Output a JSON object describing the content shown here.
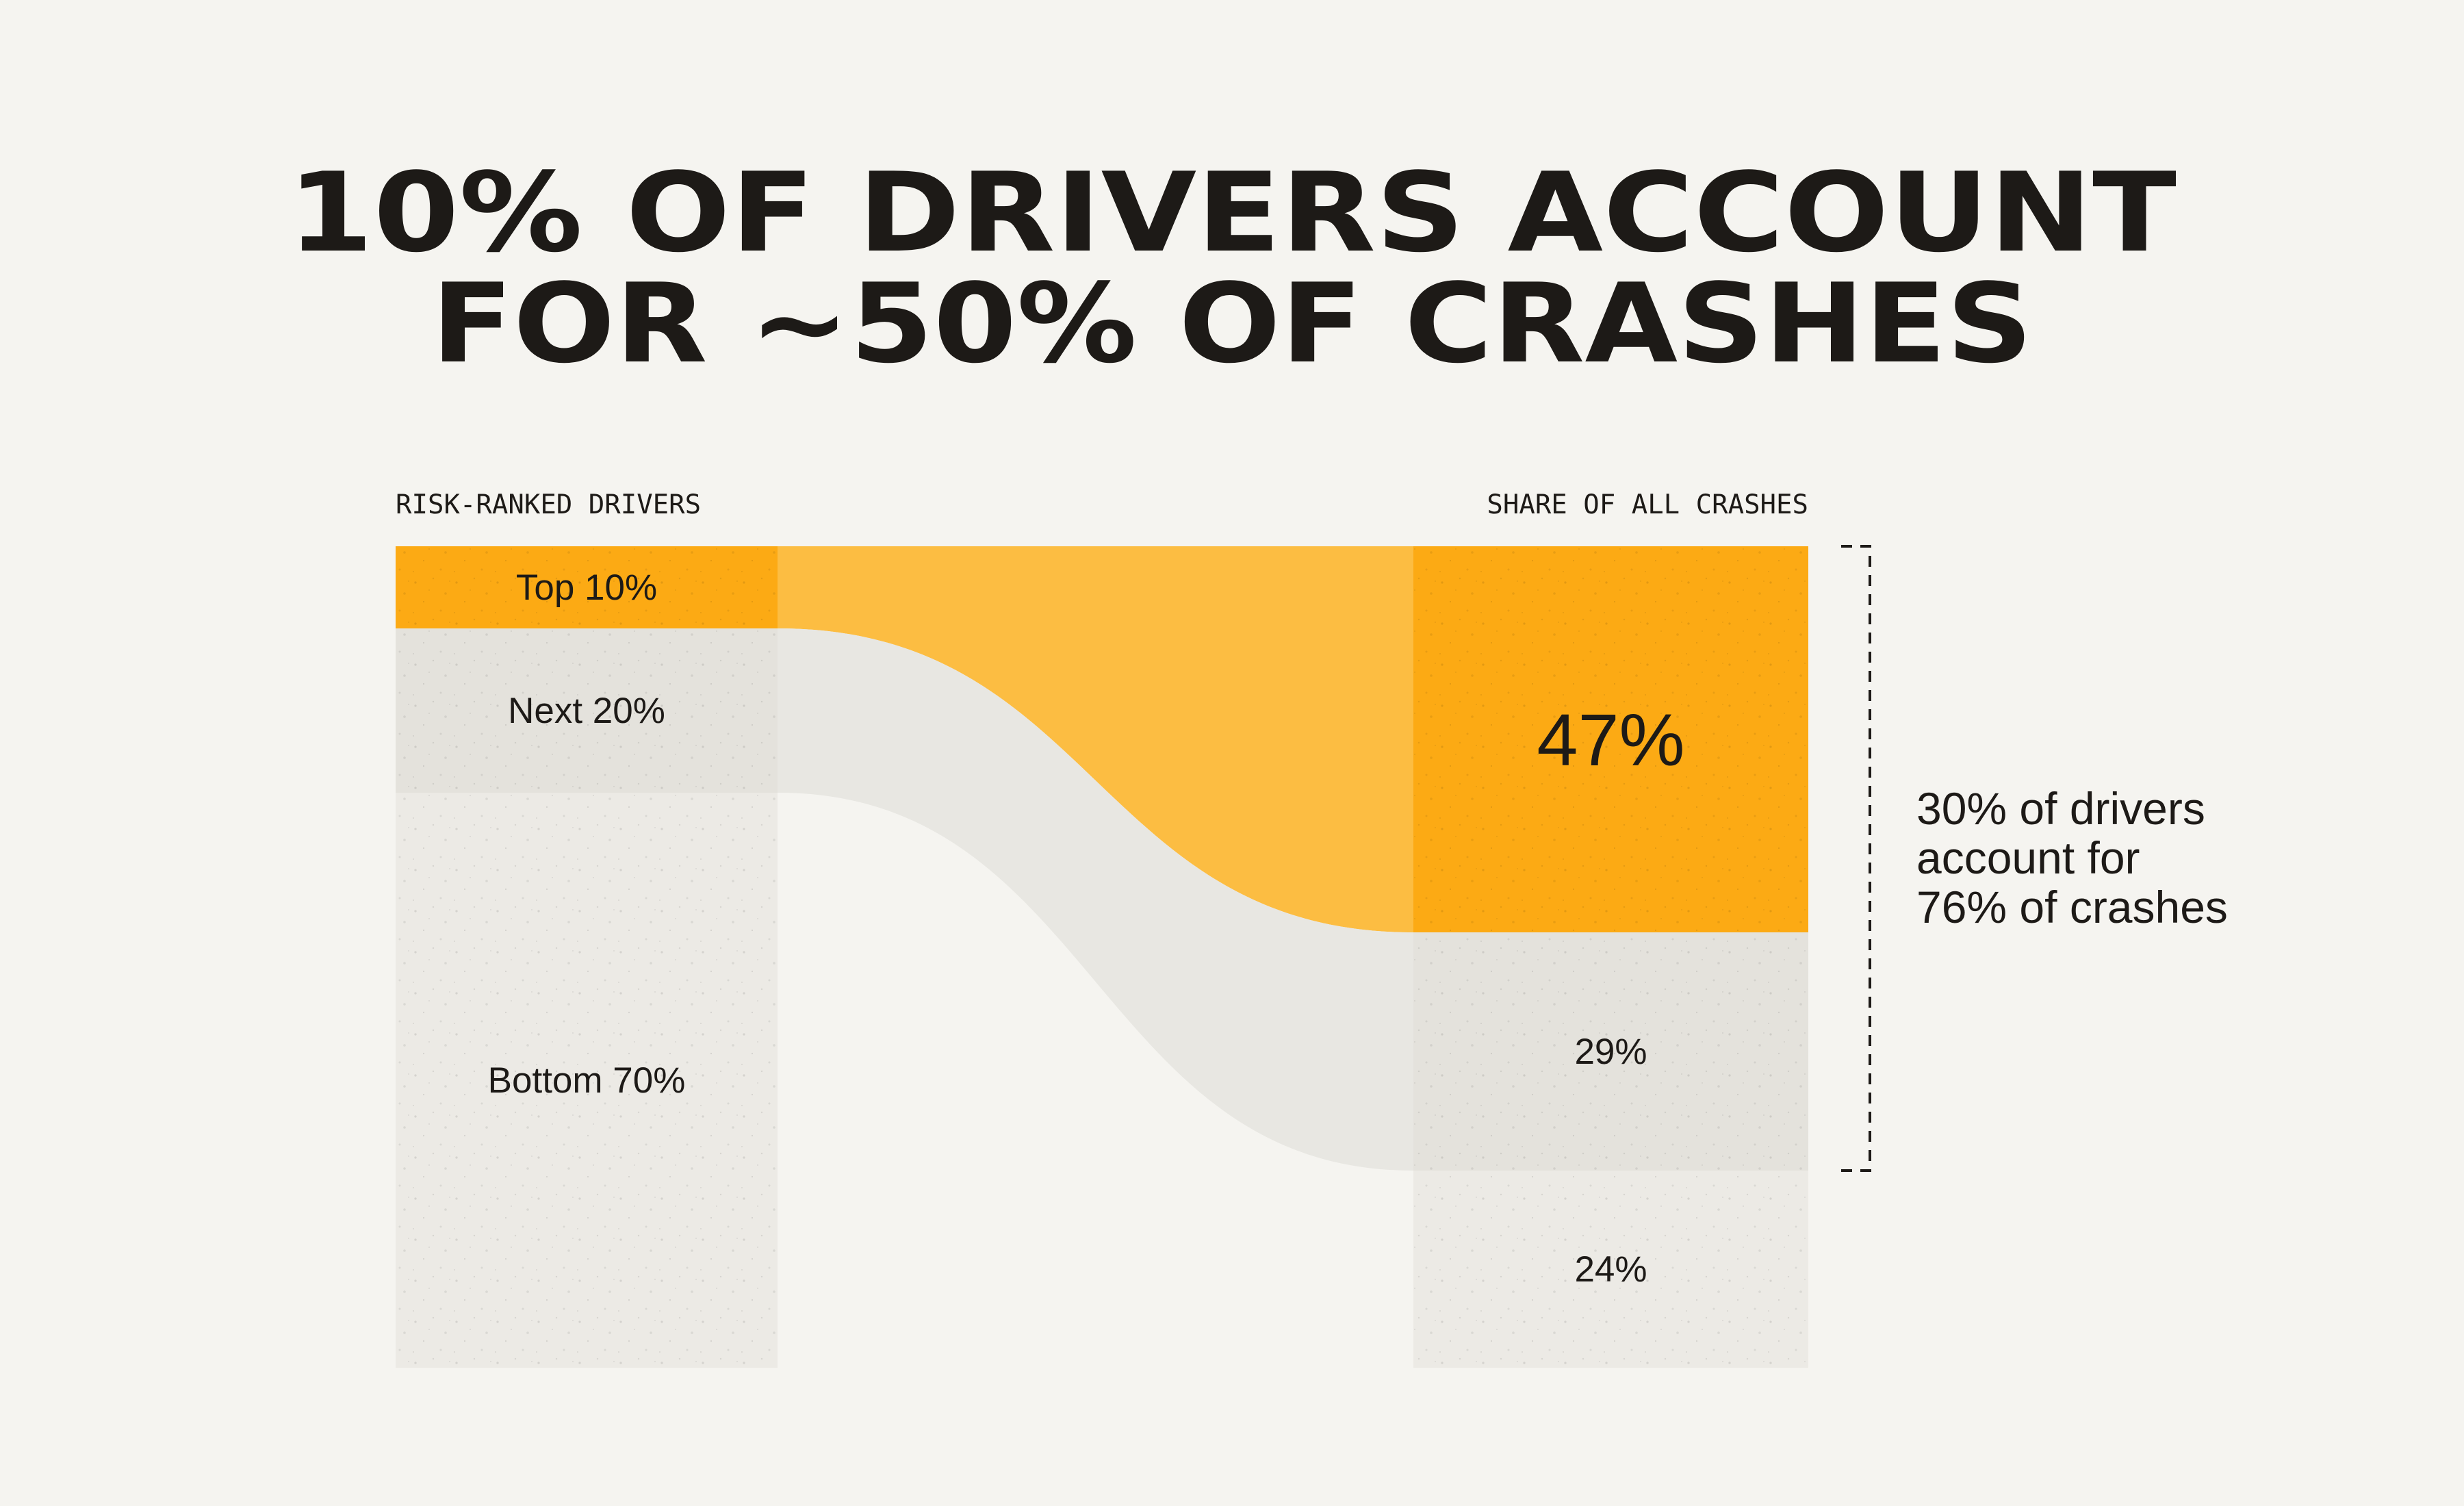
{
  "title": {
    "line1": "10% OF DRIVERS ACCOUNT",
    "line2": "FOR ~50% OF CRASHES"
  },
  "colors": {
    "background": "#f5f4f0",
    "accent": "#fcaa14",
    "flow_accent": "#fcbd42",
    "mid": "#e4e2dc",
    "light": "#eceae5",
    "flow_mid": "#e8e7e2",
    "text": "#1d1a17"
  },
  "chart_data": {
    "type": "sankey",
    "left_header": "RISK-RANKED DRIVERS",
    "right_header": "SHARE OF ALL CRASHES",
    "left_nodes": [
      {
        "label": "Top 10%",
        "value": 10,
        "color": "accent"
      },
      {
        "label": "Next 20%",
        "value": 20,
        "color": "mid"
      },
      {
        "label": "Bottom 70%",
        "value": 70,
        "color": "light"
      }
    ],
    "right_nodes": [
      {
        "label": "47%",
        "value": 47,
        "color": "accent"
      },
      {
        "label": "29%",
        "value": 29,
        "color": "mid"
      },
      {
        "label": "24%",
        "value": 24,
        "color": "light"
      }
    ],
    "flows": [
      {
        "from": 0,
        "to": 0,
        "color": "flow_accent"
      },
      {
        "from": 1,
        "to": 1,
        "color": "flow_mid"
      }
    ],
    "annotation": {
      "spans_right_nodes": [
        0,
        1
      ],
      "lines": [
        "30% of drivers",
        "account for",
        "76% of crashes"
      ]
    }
  }
}
